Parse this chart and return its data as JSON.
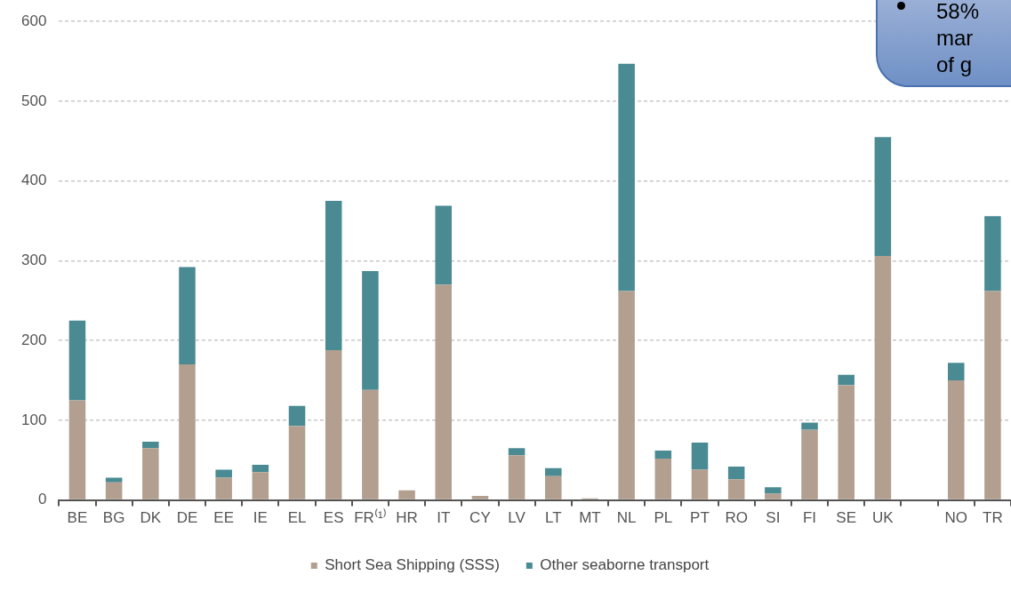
{
  "chart_data": {
    "type": "bar",
    "stacked": true,
    "categories": [
      "BE",
      "BG",
      "DK",
      "DE",
      "EE",
      "IE",
      "EL",
      "ES",
      "FR⁽¹⁾",
      "HR",
      "IT",
      "CY",
      "LV",
      "LT",
      "MT",
      "NL",
      "PL",
      "PT",
      "RO",
      "SI",
      "FI",
      "SE",
      "UK",
      null,
      "NO",
      "TR"
    ],
    "series": [
      {
        "name": "Short Sea Shipping (SSS)",
        "color": "#b29f8f",
        "values": [
          125,
          22,
          65,
          170,
          28,
          35,
          93,
          188,
          138,
          12,
          270,
          5,
          56,
          30,
          2,
          262,
          52,
          38,
          26,
          8,
          88,
          144,
          306,
          null,
          150,
          262
        ]
      },
      {
        "name": "Other seaborne transport",
        "color": "#4a8a93",
        "values": [
          100,
          6,
          8,
          122,
          10,
          9,
          25,
          187,
          149,
          0,
          99,
          0,
          9,
          10,
          0,
          285,
          10,
          34,
          16,
          8,
          9,
          13,
          149,
          null,
          22,
          94
        ]
      }
    ],
    "ylim": [
      0,
      600
    ],
    "yticks": [
      0,
      100,
      200,
      300,
      400,
      500,
      600
    ],
    "grid": "y",
    "legend": "bottom",
    "annotations": [
      "58% mar of g"
    ]
  }
}
